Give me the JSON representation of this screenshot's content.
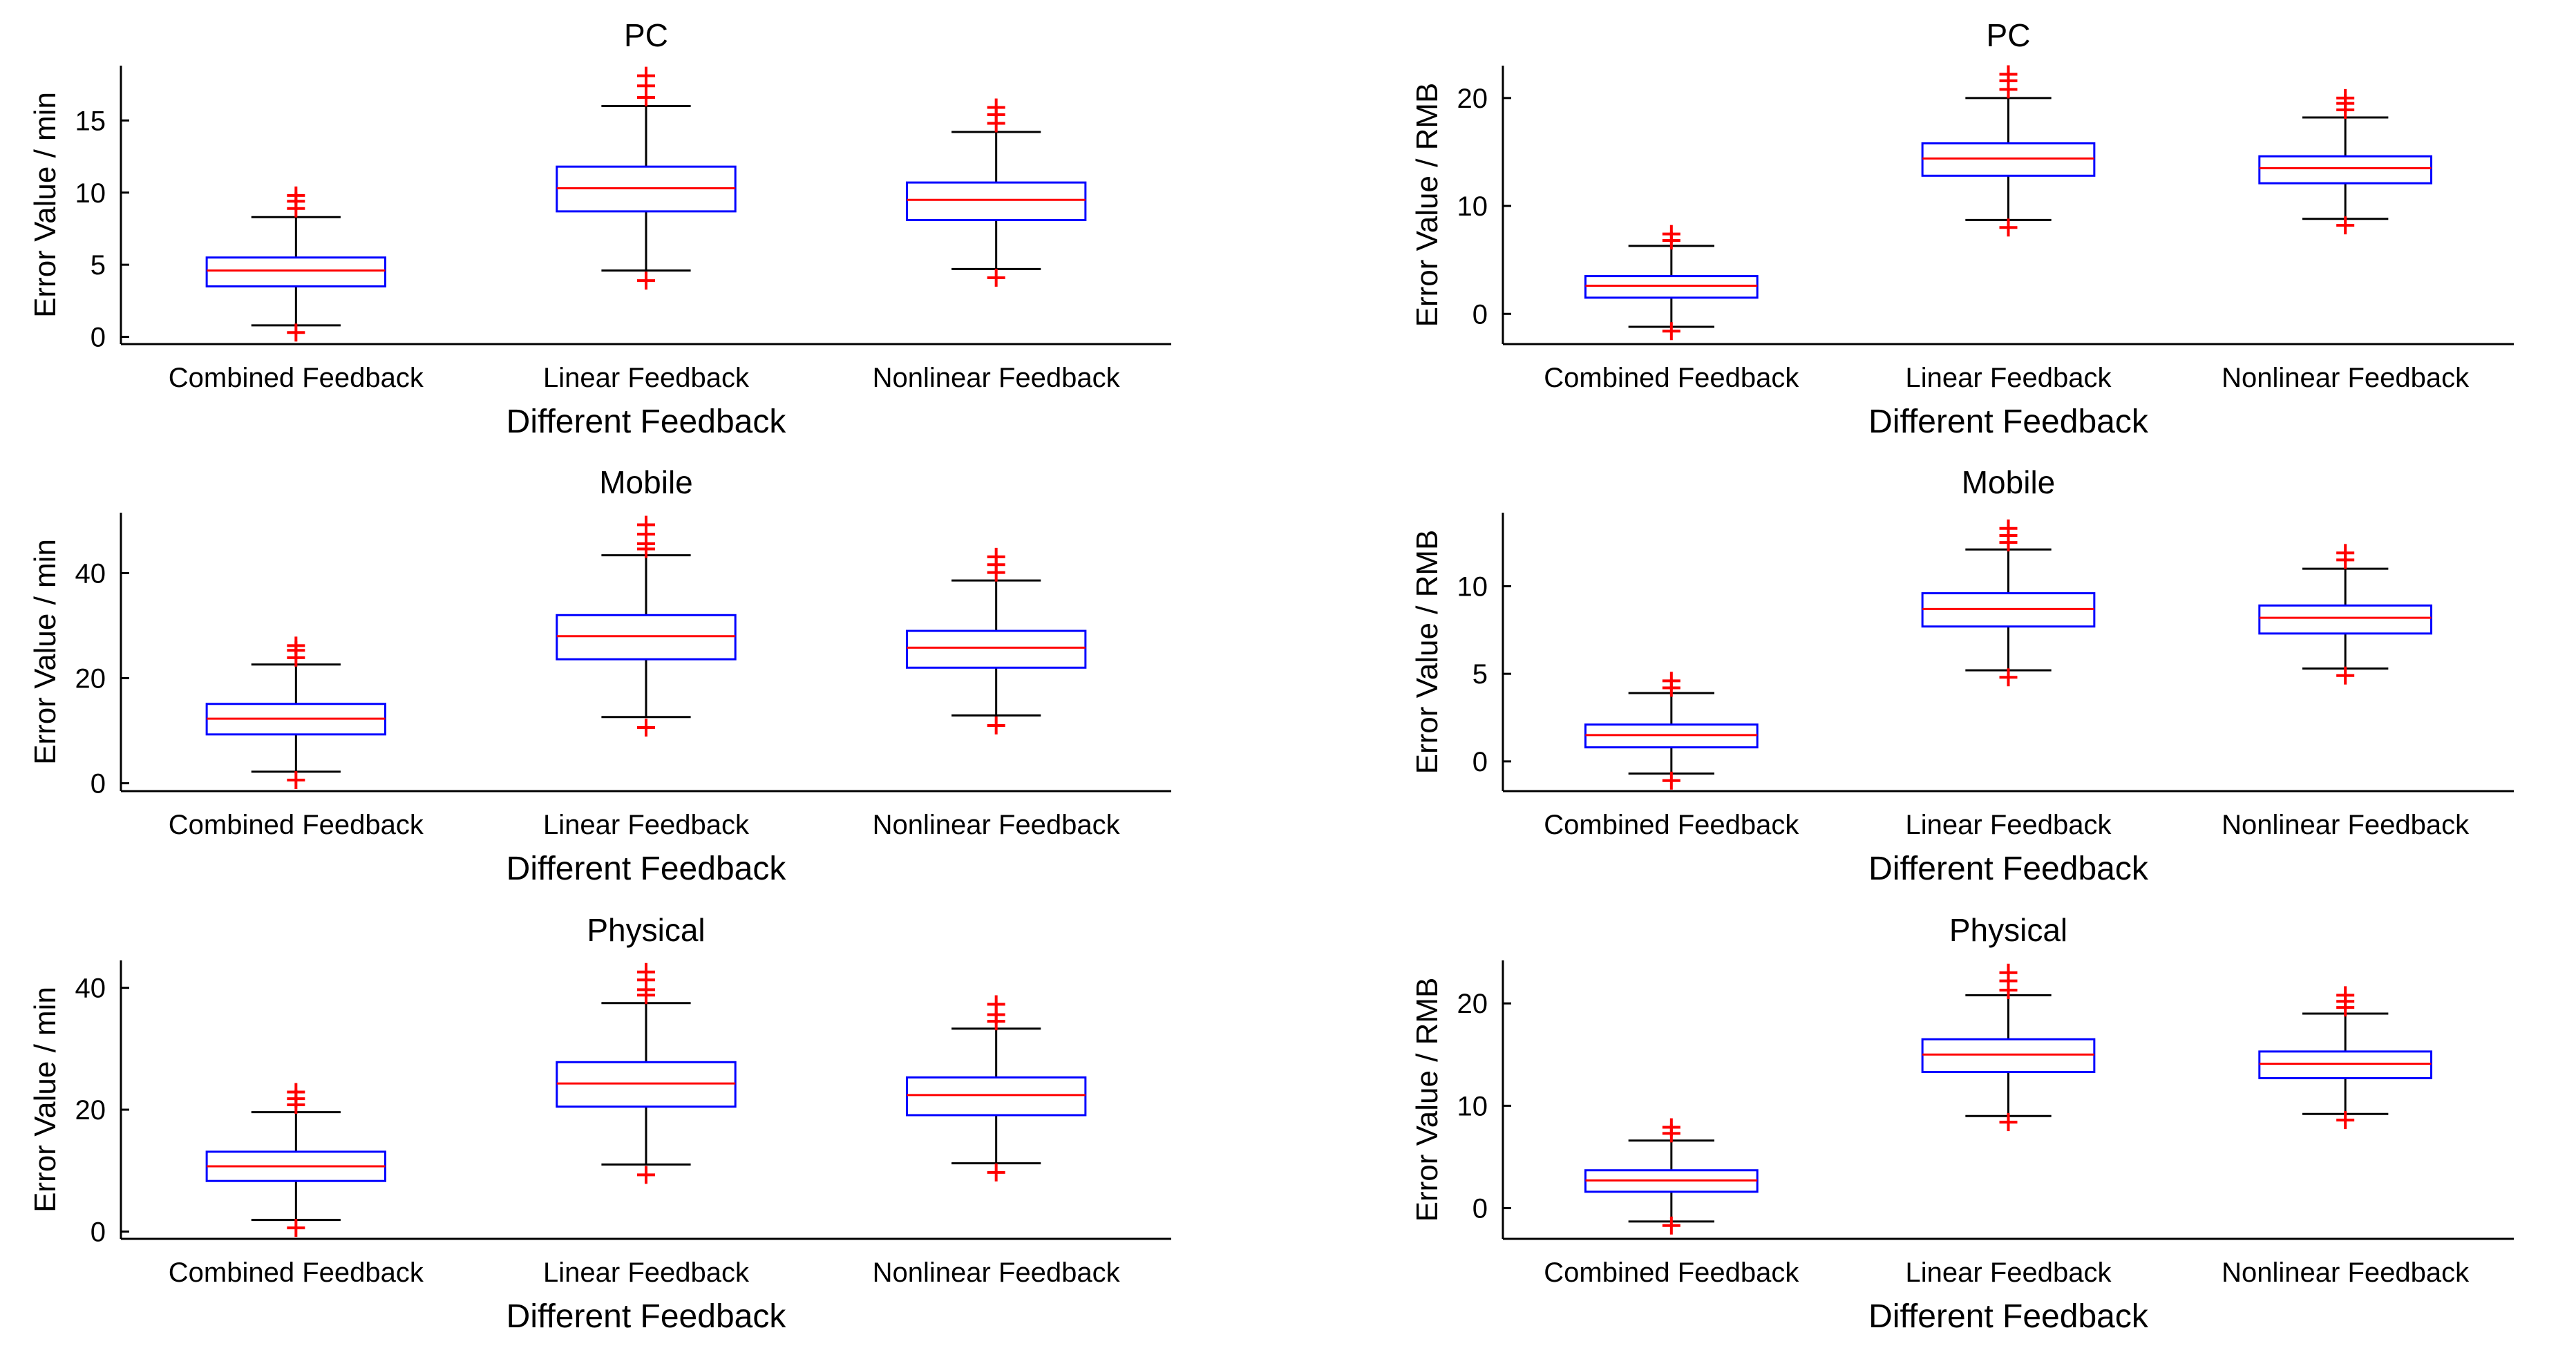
{
  "colors": {
    "box": "#0000ff",
    "median": "#ff0000",
    "whisker": "#000000",
    "outlier": "#ff0000",
    "axis": "#000000"
  },
  "chart_data": [
    {
      "type": "boxplot",
      "title": "PC",
      "xlabel": "Different Feedback",
      "ylabel": "Error Value / min",
      "ylim": [
        -0.5,
        18.8
      ],
      "yticks": [
        0,
        5,
        10,
        15
      ],
      "categories": [
        "Combined Feedback",
        "Linear Feedback",
        "Nonlinear Feedback"
      ],
      "boxes": [
        {
          "min": 0.8,
          "q1": 3.5,
          "median": 4.6,
          "q3": 5.5,
          "max": 8.3,
          "outliers": [
            0.3,
            8.9,
            9.4,
            9.8
          ]
        },
        {
          "min": 4.6,
          "q1": 8.7,
          "median": 10.3,
          "q3": 11.8,
          "max": 16.0,
          "outliers": [
            3.9,
            16.6,
            17.4,
            18.1
          ]
        },
        {
          "min": 4.7,
          "q1": 8.1,
          "median": 9.5,
          "q3": 10.7,
          "max": 14.2,
          "outliers": [
            4.1,
            14.8,
            15.4,
            15.9
          ]
        }
      ]
    },
    {
      "type": "boxplot",
      "title": "PC",
      "xlabel": "Different Feedback",
      "ylabel": "Error Value / RMB",
      "ylim": [
        -2.8,
        23.0
      ],
      "yticks": [
        0,
        10,
        20
      ],
      "categories": [
        "Combined Feedback",
        "Linear Feedback",
        "Nonlinear Feedback"
      ],
      "boxes": [
        {
          "min": -1.2,
          "q1": 1.5,
          "median": 2.6,
          "q3": 3.5,
          "max": 6.3,
          "outliers": [
            -1.6,
            6.8,
            7.4
          ]
        },
        {
          "min": 8.7,
          "q1": 12.8,
          "median": 14.4,
          "q3": 15.8,
          "max": 20.0,
          "outliers": [
            8.0,
            20.8,
            21.6,
            22.2
          ]
        },
        {
          "min": 8.8,
          "q1": 12.1,
          "median": 13.5,
          "q3": 14.6,
          "max": 18.2,
          "outliers": [
            8.2,
            18.9,
            19.5,
            20.0
          ]
        }
      ]
    },
    {
      "type": "boxplot",
      "title": "Mobile",
      "xlabel": "Different Feedback",
      "ylabel": "Error Value / min",
      "ylim": [
        -1.5,
        51.5
      ],
      "yticks": [
        0,
        20,
        40
      ],
      "categories": [
        "Combined Feedback",
        "Linear Feedback",
        "Nonlinear Feedback"
      ],
      "boxes": [
        {
          "min": 2.2,
          "q1": 9.3,
          "median": 12.3,
          "q3": 15.1,
          "max": 22.6,
          "outliers": [
            0.6,
            23.9,
            25.3,
            26.2
          ]
        },
        {
          "min": 12.6,
          "q1": 23.6,
          "median": 28.0,
          "q3": 32.0,
          "max": 43.4,
          "outliers": [
            10.6,
            44.6,
            45.6,
            47.4,
            49.2
          ]
        },
        {
          "min": 12.9,
          "q1": 22.0,
          "median": 25.8,
          "q3": 29.0,
          "max": 38.6,
          "outliers": [
            11.0,
            40.1,
            41.6,
            43.1
          ]
        }
      ]
    },
    {
      "type": "boxplot",
      "title": "Mobile",
      "xlabel": "Different Feedback",
      "ylabel": "Error Value / RMB",
      "ylim": [
        -1.7,
        14.2
      ],
      "yticks": [
        0,
        5,
        10
      ],
      "categories": [
        "Combined Feedback",
        "Linear Feedback",
        "Nonlinear Feedback"
      ],
      "boxes": [
        {
          "min": -0.7,
          "q1": 0.8,
          "median": 1.5,
          "q3": 2.1,
          "max": 3.9,
          "outliers": [
            -1.1,
            4.2,
            4.6
          ]
        },
        {
          "min": 5.2,
          "q1": 7.7,
          "median": 8.7,
          "q3": 9.6,
          "max": 12.1,
          "outliers": [
            4.8,
            12.5,
            12.9,
            13.3
          ]
        },
        {
          "min": 5.3,
          "q1": 7.3,
          "median": 8.2,
          "q3": 8.9,
          "max": 11.0,
          "outliers": [
            4.9,
            11.5,
            11.9
          ]
        }
      ]
    },
    {
      "type": "boxplot",
      "title": "Physical",
      "xlabel": "Different Feedback",
      "ylabel": "Error Value / min",
      "ylim": [
        -1.2,
        44.5
      ],
      "yticks": [
        0,
        20,
        40
      ],
      "categories": [
        "Combined Feedback",
        "Linear Feedback",
        "Nonlinear Feedback"
      ],
      "boxes": [
        {
          "min": 1.9,
          "q1": 8.3,
          "median": 10.7,
          "q3": 13.1,
          "max": 19.6,
          "outliers": [
            0.6,
            20.8,
            21.8,
            22.9
          ]
        },
        {
          "min": 11.0,
          "q1": 20.5,
          "median": 24.3,
          "q3": 27.8,
          "max": 37.5,
          "outliers": [
            9.3,
            38.8,
            39.7,
            41.3,
            42.6
          ]
        },
        {
          "min": 11.2,
          "q1": 19.1,
          "median": 22.4,
          "q3": 25.3,
          "max": 33.3,
          "outliers": [
            9.7,
            34.5,
            35.6,
            37.3
          ]
        }
      ]
    },
    {
      "type": "boxplot",
      "title": "Physical",
      "xlabel": "Different Feedback",
      "ylabel": "Error Value / RMB",
      "ylim": [
        -3.0,
        24.2
      ],
      "yticks": [
        0,
        10,
        20
      ],
      "categories": [
        "Combined Feedback",
        "Linear Feedback",
        "Nonlinear Feedback"
      ],
      "boxes": [
        {
          "min": -1.3,
          "q1": 1.6,
          "median": 2.7,
          "q3": 3.7,
          "max": 6.6,
          "outliers": [
            -1.7,
            7.3,
            7.9
          ]
        },
        {
          "min": 9.0,
          "q1": 13.3,
          "median": 15.0,
          "q3": 16.5,
          "max": 20.8,
          "outliers": [
            8.4,
            21.3,
            22.2,
            23.0
          ]
        },
        {
          "min": 9.2,
          "q1": 12.7,
          "median": 14.1,
          "q3": 15.3,
          "max": 19.0,
          "outliers": [
            8.6,
            19.6,
            20.2,
            20.8
          ]
        }
      ]
    }
  ]
}
